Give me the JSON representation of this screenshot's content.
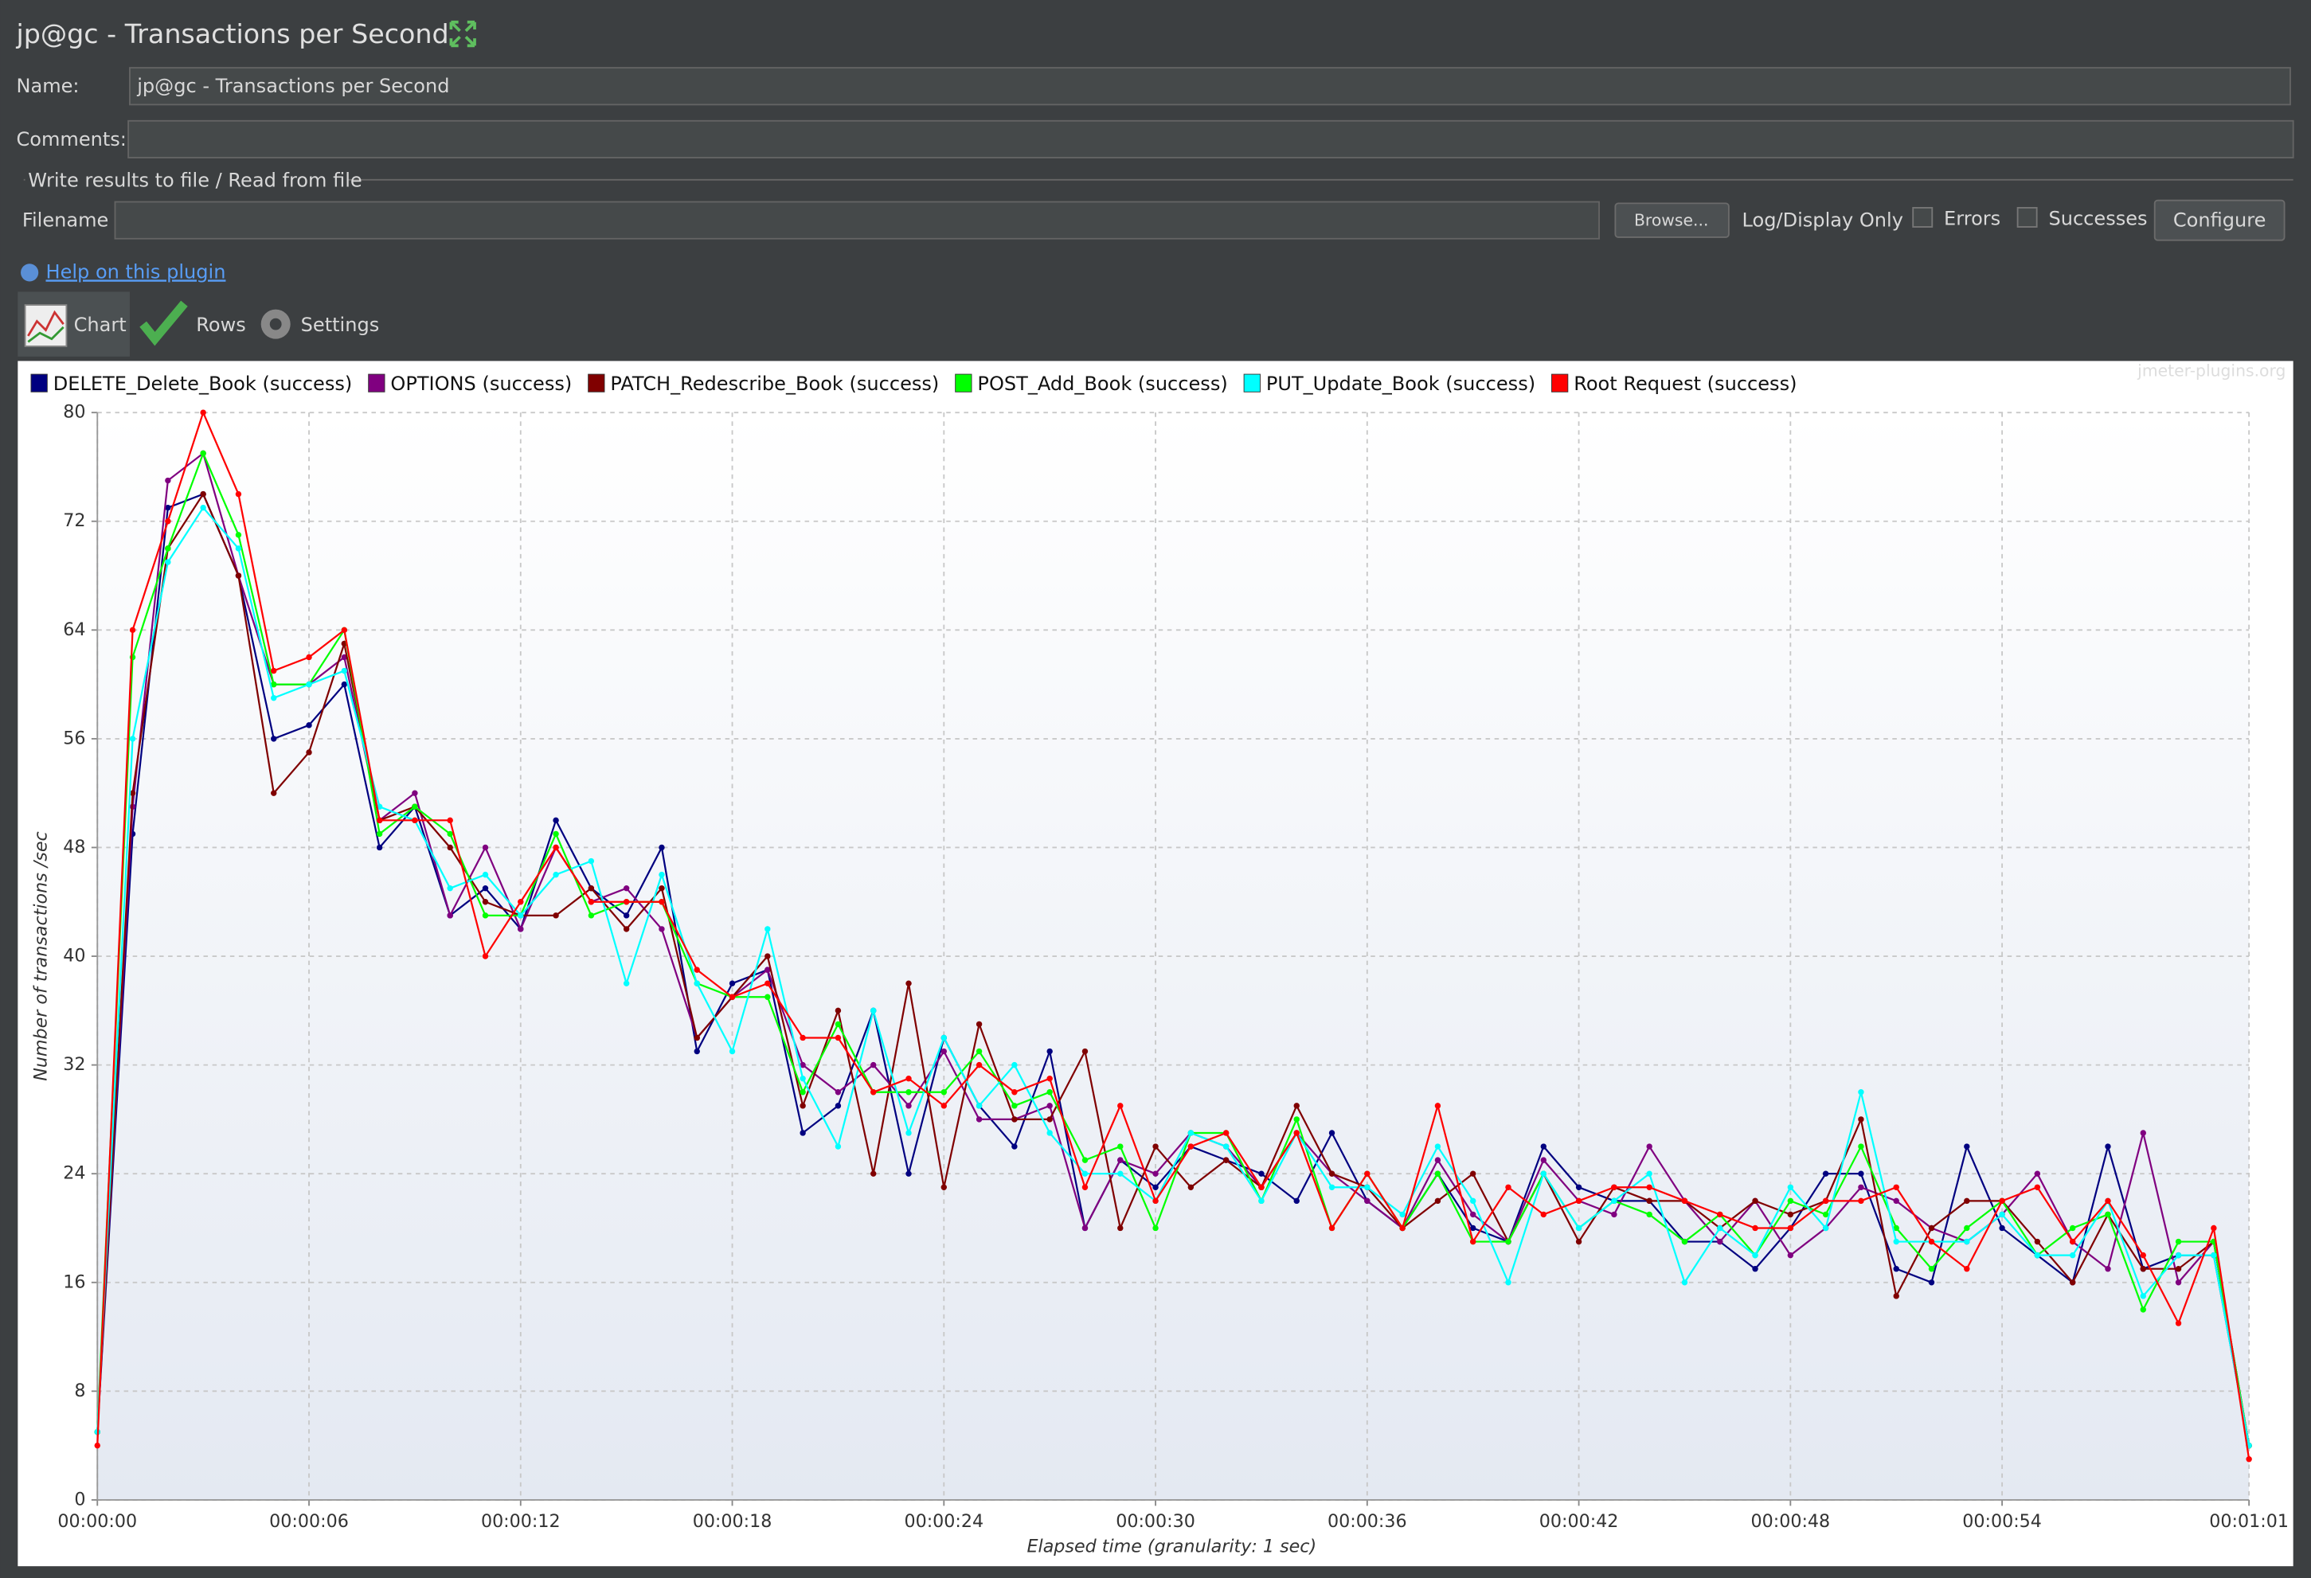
{
  "window": {
    "title": "jp@gc - Transactions per Second"
  },
  "form": {
    "name_label": "Name:",
    "name_value": "jp@gc - Transactions per Second",
    "comments_label": "Comments:",
    "group_title": "Write results to file / Read from file",
    "filename_label": "Filename",
    "browse": "Browse...",
    "log_display": "Log/Display Only",
    "errors": "Errors",
    "successes": "Successes",
    "configure": "Configure",
    "help": "Help on this plugin"
  },
  "tabs": [
    "Chart",
    "Rows",
    "Settings"
  ],
  "chart_data": {
    "type": "line",
    "watermark": "jmeter-plugins.org",
    "xlabel": "Elapsed time (granularity: 1 sec)",
    "ylabel": "Number of transactions /sec",
    "x": [
      0,
      1,
      2,
      3,
      4,
      5,
      6,
      7,
      8,
      9,
      10,
      11,
      12,
      13,
      14,
      15,
      16,
      17,
      18,
      19,
      20,
      21,
      22,
      23,
      24,
      25,
      26,
      27,
      28,
      29,
      30,
      31,
      32,
      33,
      34,
      35,
      36,
      37,
      38,
      39,
      40,
      41,
      42,
      43,
      44,
      45,
      46,
      47,
      48,
      49,
      50,
      51,
      52,
      53,
      54,
      55,
      56,
      57,
      58,
      59,
      60,
      61
    ],
    "xlim": [
      0,
      61
    ],
    "xticks": [
      {
        "value": 0,
        "label": "00:00:00"
      },
      {
        "value": 6,
        "label": "00:00:06"
      },
      {
        "value": 12,
        "label": "00:00:12"
      },
      {
        "value": 18,
        "label": "00:00:18"
      },
      {
        "value": 24,
        "label": "00:00:24"
      },
      {
        "value": 30,
        "label": "00:00:30"
      },
      {
        "value": 36,
        "label": "00:00:36"
      },
      {
        "value": 42,
        "label": "00:00:42"
      },
      {
        "value": 48,
        "label": "00:00:48"
      },
      {
        "value": 54,
        "label": "00:00:54"
      },
      {
        "value": 61,
        "label": "00:01:01"
      }
    ],
    "ylim": [
      0,
      80
    ],
    "yticks": [
      0,
      8,
      16,
      24,
      32,
      40,
      48,
      56,
      64,
      72,
      80
    ],
    "grid": true,
    "series": [
      {
        "name": "DELETE_Delete_Book (success)",
        "color": "#000080",
        "values": [
          5,
          49,
          73,
          74,
          68,
          56,
          57,
          60,
          48,
          51,
          43,
          45,
          42,
          50,
          45,
          43,
          48,
          33,
          38,
          39,
          27,
          29,
          36,
          24,
          34,
          29,
          26,
          33,
          20,
          25,
          23,
          26,
          25,
          24,
          22,
          27,
          22,
          20,
          24,
          20,
          19,
          26,
          23,
          22,
          22,
          19,
          19,
          17,
          20,
          24,
          24,
          17,
          16,
          26,
          20,
          18,
          16,
          26,
          17,
          18,
          18,
          4
        ]
      },
      {
        "name": "OPTIONS (success)",
        "color": "#800080",
        "values": [
          5,
          51,
          75,
          77,
          68,
          60,
          60,
          62,
          50,
          52,
          43,
          48,
          42,
          48,
          44,
          45,
          42,
          34,
          37,
          39,
          32,
          30,
          32,
          29,
          33,
          28,
          28,
          29,
          20,
          25,
          24,
          27,
          26,
          23,
          27,
          24,
          22,
          20,
          25,
          21,
          19,
          25,
          22,
          21,
          26,
          22,
          19,
          22,
          18,
          20,
          23,
          22,
          20,
          19,
          21,
          24,
          19,
          17,
          27,
          16,
          19,
          4
        ]
      },
      {
        "name": "PATCH_Redescribe_Book (success)",
        "color": "#800000",
        "values": [
          5,
          52,
          70,
          74,
          68,
          52,
          55,
          63,
          50,
          51,
          48,
          44,
          43,
          43,
          45,
          42,
          45,
          34,
          37,
          40,
          29,
          36,
          24,
          38,
          23,
          35,
          28,
          28,
          33,
          20,
          26,
          23,
          25,
          23,
          29,
          24,
          23,
          20,
          22,
          24,
          19,
          24,
          19,
          23,
          22,
          22,
          20,
          22,
          21,
          22,
          28,
          15,
          20,
          22,
          22,
          19,
          16,
          21,
          17,
          17,
          19,
          4
        ]
      },
      {
        "name": "POST_Add_Book (success)",
        "color": "#00ff00",
        "values": [
          5,
          62,
          70,
          77,
          71,
          60,
          60,
          64,
          49,
          51,
          49,
          43,
          43,
          49,
          43,
          44,
          44,
          38,
          37,
          37,
          30,
          35,
          30,
          30,
          30,
          33,
          29,
          30,
          25,
          26,
          20,
          27,
          27,
          22,
          28,
          20,
          24,
          20,
          24,
          19,
          19,
          24,
          20,
          22,
          21,
          19,
          21,
          18,
          22,
          21,
          26,
          20,
          17,
          20,
          22,
          18,
          20,
          21,
          14,
          19,
          19,
          4
        ]
      },
      {
        "name": "PUT_Update_Book (success)",
        "color": "#00ffff",
        "values": [
          5,
          56,
          69,
          73,
          70,
          59,
          60,
          61,
          51,
          50,
          45,
          46,
          43,
          46,
          47,
          38,
          46,
          38,
          33,
          42,
          31,
          26,
          36,
          27,
          34,
          29,
          32,
          27,
          24,
          24,
          22,
          27,
          26,
          22,
          27,
          23,
          23,
          21,
          26,
          22,
          16,
          24,
          20,
          22,
          24,
          16,
          20,
          18,
          23,
          20,
          30,
          19,
          19,
          19,
          21,
          18,
          18,
          22,
          15,
          18,
          18,
          4
        ]
      },
      {
        "name": "Root Request (success)",
        "color": "#ff0000",
        "values": [
          4,
          64,
          72,
          80,
          74,
          61,
          62,
          64,
          50,
          50,
          50,
          40,
          44,
          48,
          44,
          44,
          44,
          39,
          37,
          38,
          34,
          34,
          30,
          31,
          29,
          32,
          30,
          31,
          23,
          29,
          22,
          26,
          27,
          23,
          27,
          20,
          24,
          20,
          29,
          19,
          23,
          21,
          22,
          23,
          23,
          22,
          21,
          20,
          20,
          22,
          22,
          23,
          19,
          17,
          22,
          23,
          19,
          22,
          18,
          13,
          20,
          3
        ]
      }
    ]
  }
}
